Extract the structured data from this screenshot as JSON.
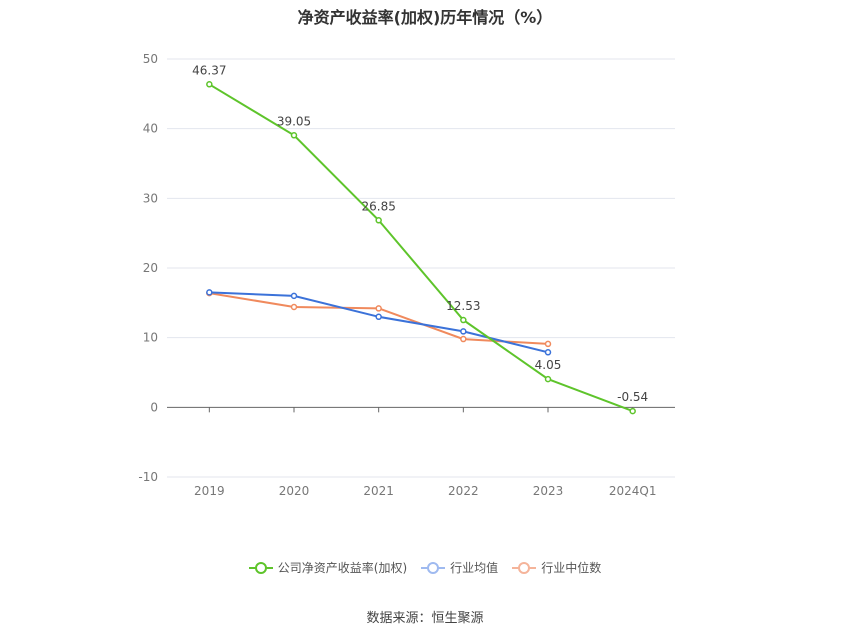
{
  "source_text": "数据来源：恒生聚源",
  "chart_data": {
    "type": "line",
    "title": "净资产收益率(加权)历年情况（%）",
    "categories": [
      "2019",
      "2020",
      "2021",
      "2022",
      "2023",
      "2024Q1"
    ],
    "ylim": [
      -10,
      50
    ],
    "yticks": [
      -10,
      0,
      10,
      20,
      30,
      40,
      50
    ],
    "grid": true,
    "legend_position": "bottom",
    "series": [
      {
        "name": "公司净资产收益率(加权)",
        "color": "#5ec42b",
        "values": [
          46.37,
          39.05,
          26.85,
          12.53,
          4.05,
          -0.54
        ],
        "labels": [
          "46.37",
          "39.05",
          "26.85",
          "12.53",
          "4.05",
          "-0.54"
        ]
      },
      {
        "name": "行业均值",
        "color": "#3b72d9",
        "values": [
          16.5,
          16.0,
          13.0,
          10.9,
          7.9,
          null
        ]
      },
      {
        "name": "行业中位数",
        "color": "#f08a5d",
        "values": [
          16.4,
          14.4,
          14.2,
          9.8,
          9.1,
          null
        ]
      }
    ]
  }
}
